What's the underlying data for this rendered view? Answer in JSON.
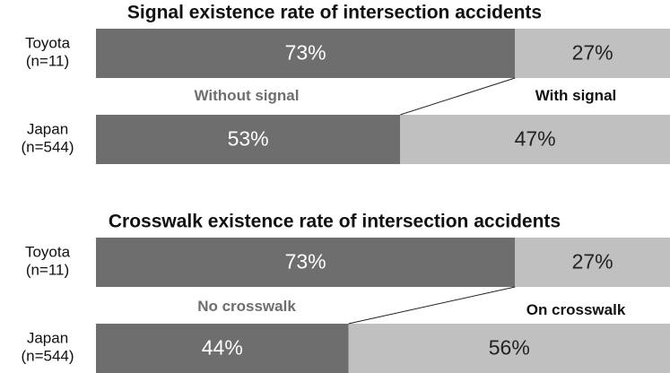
{
  "chart_data": [
    {
      "type": "bar",
      "title": "Signal existence rate of intersection accidents",
      "categories": [
        "Toyota\n(n=11)",
        "Japan\n(n=544)"
      ],
      "xlim": [
        0,
        100
      ],
      "series": [
        {
          "name": "Without signal",
          "color": "#6e6e6e",
          "values": [
            73,
            53
          ],
          "value_labels": [
            "73%",
            "53%"
          ]
        },
        {
          "name": "With signal",
          "color": "#c0c0c0",
          "values": [
            27,
            47
          ],
          "value_labels": [
            "27%",
            "47%"
          ]
        }
      ]
    },
    {
      "type": "bar",
      "title": "Crosswalk existence rate of intersection accidents",
      "categories": [
        "Toyota\n(n=11)",
        "Japan\n(n=544)"
      ],
      "xlim": [
        0,
        100
      ],
      "series": [
        {
          "name": "No crosswalk",
          "color": "#6e6e6e",
          "values": [
            73,
            44
          ],
          "value_labels": [
            "73%",
            "44%"
          ]
        },
        {
          "name": "On crosswalk",
          "color": "#c0c0c0",
          "values": [
            27,
            56
          ],
          "value_labels": [
            "27%",
            "56%"
          ]
        }
      ]
    }
  ]
}
